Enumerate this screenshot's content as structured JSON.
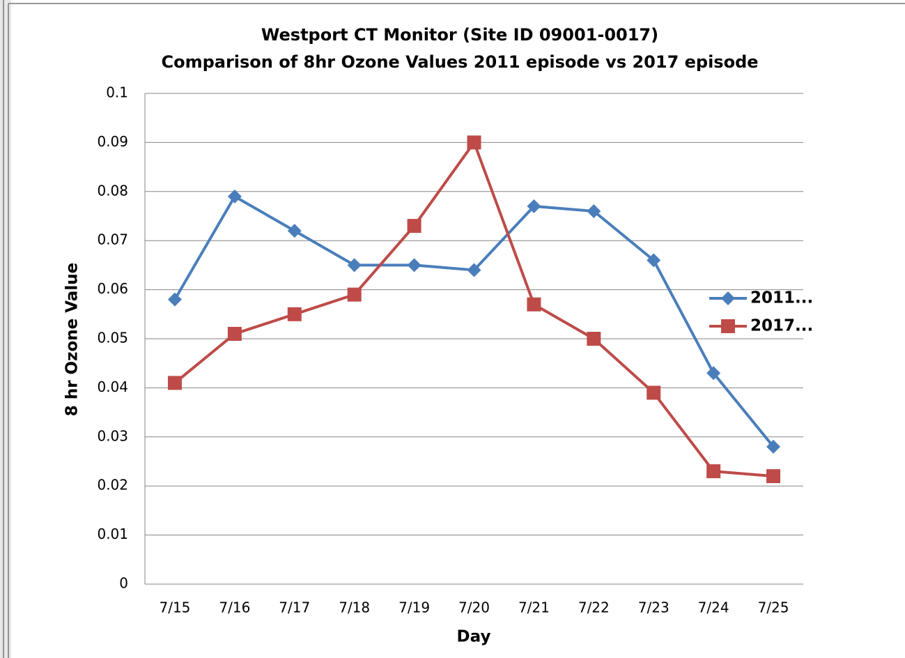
{
  "chart_data": {
    "type": "line",
    "title": "Westport CT Monitor (Site ID 09001-0017)",
    "subtitle": "Comparison of  8hr Ozone Values 2011 episode vs  2017 episode",
    "x_label": "Day",
    "y_label": "8 hr Ozone Value",
    "categories": [
      "7/15",
      "7/16",
      "7/17",
      "7/18",
      "7/19",
      "7/20",
      "7/21",
      "7/22",
      "7/23",
      "7/24",
      "7/25"
    ],
    "series": [
      {
        "name": "2011...",
        "color": "#4a7ebb",
        "marker": "diamond",
        "values": [
          0.058,
          0.079,
          0.072,
          0.065,
          0.065,
          0.064,
          0.077,
          0.076,
          0.066,
          0.043,
          0.028
        ]
      },
      {
        "name": "2017...",
        "color": "#be4b48",
        "marker": "square",
        "values": [
          0.041,
          0.051,
          0.055,
          0.059,
          0.073,
          0.09,
          0.057,
          0.05,
          0.039,
          0.023,
          0.022
        ]
      }
    ],
    "ylim": [
      0,
      0.1
    ],
    "yticks": [
      0,
      0.01,
      0.02,
      0.03,
      0.04,
      0.05,
      0.06,
      0.07,
      0.08,
      0.09,
      0.1
    ],
    "grid": true,
    "legend": "right"
  }
}
